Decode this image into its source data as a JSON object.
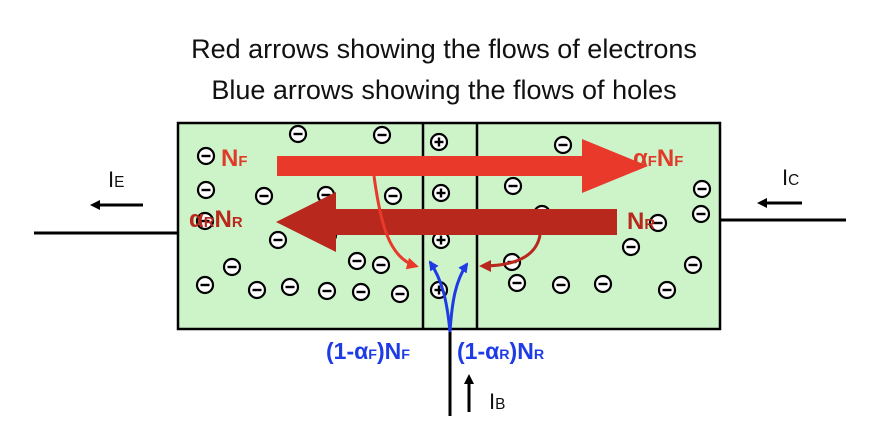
{
  "title_line1": "Red arrows showing the flows of electrons",
  "title_line2": "Blue arrows showing the flows of holes",
  "labels": {
    "nf_main": "N",
    "nf_sub": "F",
    "afnf_alpha": "α",
    "afnf_alpha_sub": "F",
    "afnf_n": "N",
    "afnf_n_sub": "F",
    "arnr_alpha": "α",
    "arnr_alpha_sub": "R",
    "arnr_n": "N",
    "arnr_n_sub": "R",
    "nr_main": "N",
    "nr_sub": "R",
    "recomb_f_pre": "(1-α",
    "recomb_f_sub1": "F",
    "recomb_f_mid": ")N",
    "recomb_f_sub2": "F",
    "recomb_r_pre": "(1-α",
    "recomb_r_sub1": "R",
    "recomb_r_mid": ")N",
    "recomb_r_sub2": "R"
  },
  "currents": {
    "ie_main": "I",
    "ie_sub": "E",
    "ic_main": "I",
    "ic_sub": "C",
    "ib_main": "I",
    "ib_sub": "B"
  },
  "carriers": {
    "electron_symbol": "−",
    "hole_symbol": "+"
  },
  "colors": {
    "region_fill": "#cdf3c9",
    "electron_forward": "#e8392a",
    "electron_reverse": "#b8281c",
    "holes": "#1e3be6"
  },
  "icons": [
    "electron-icon",
    "hole-icon",
    "arrow-icon"
  ]
}
